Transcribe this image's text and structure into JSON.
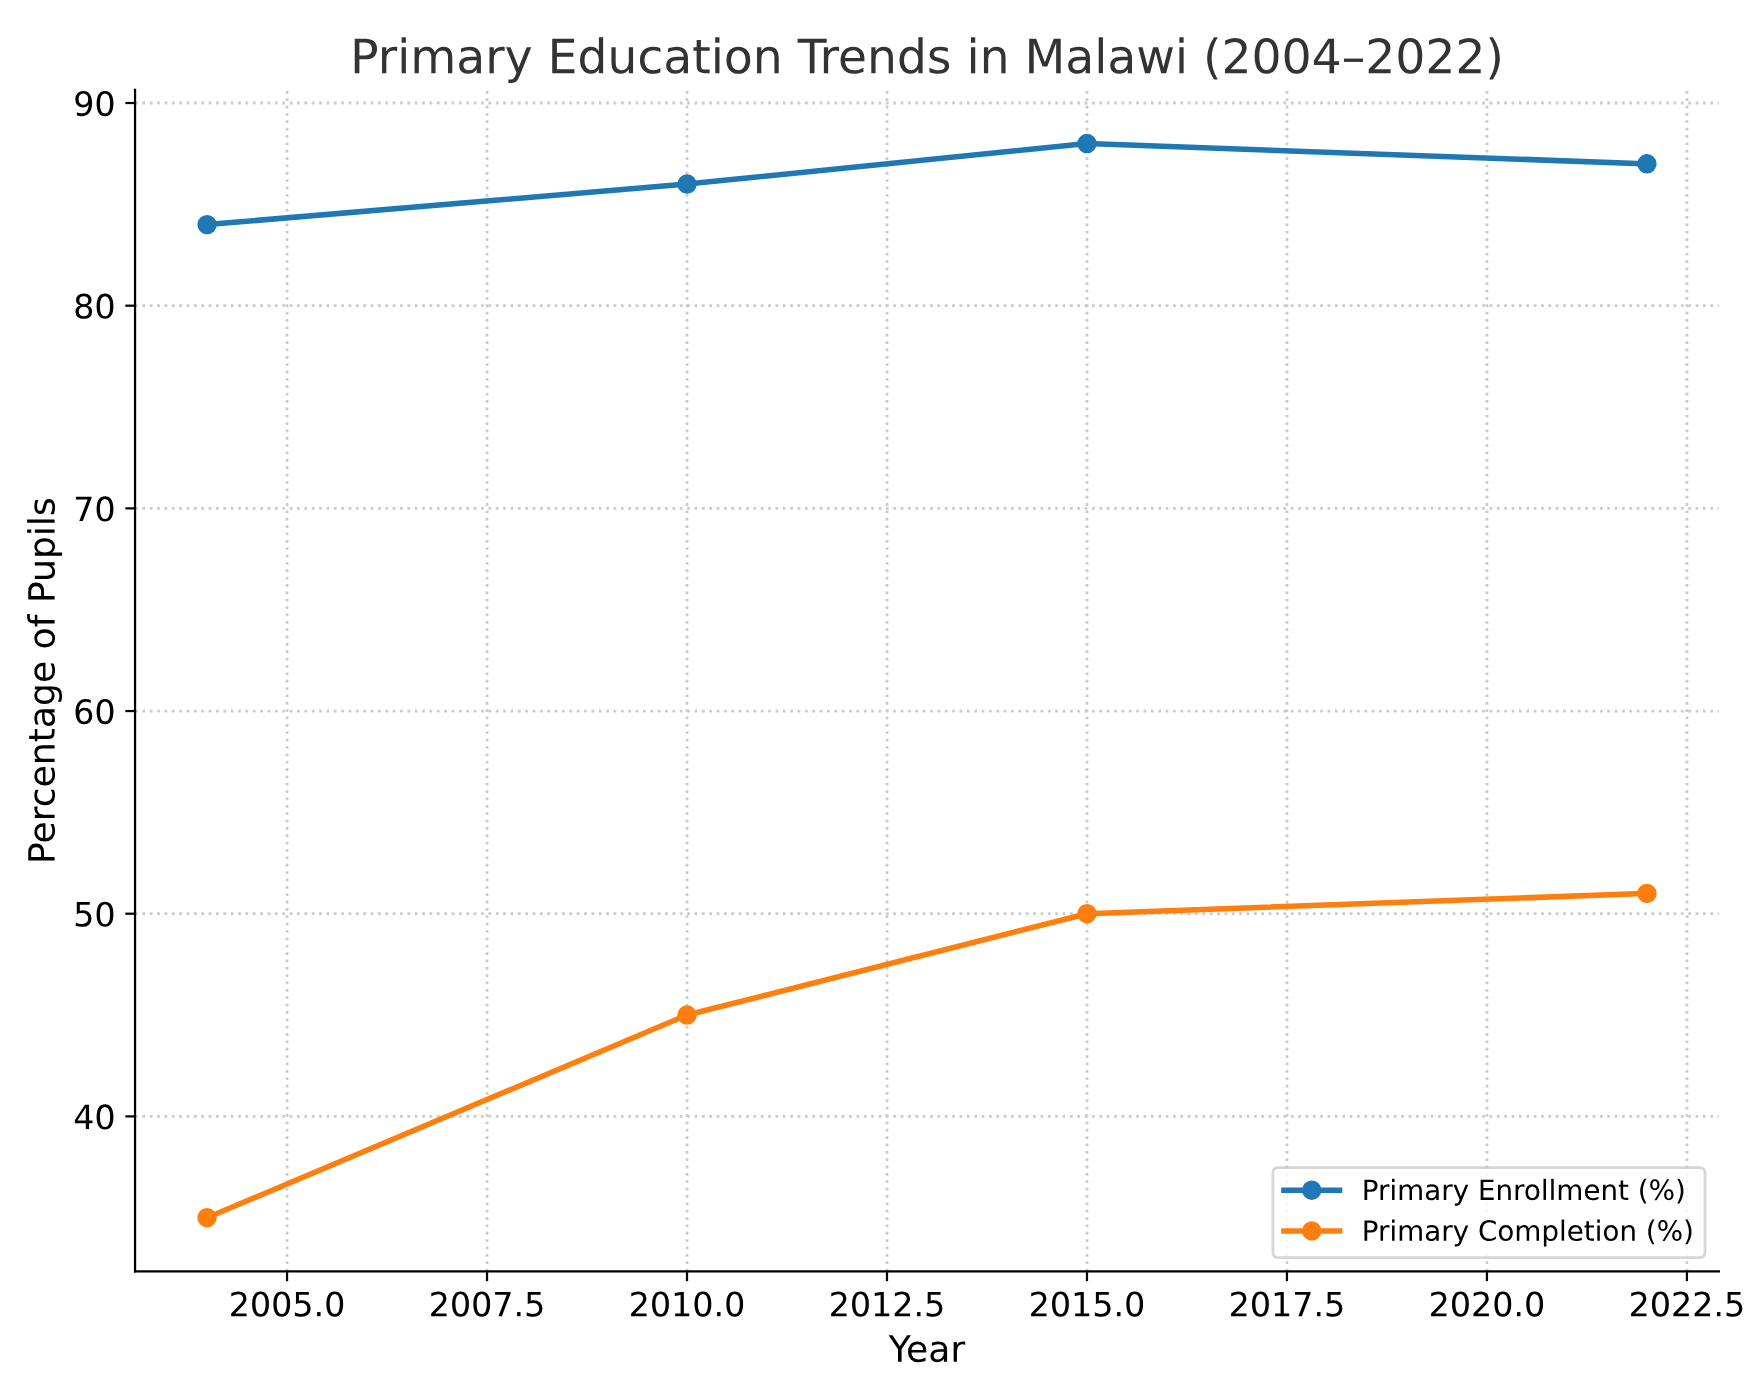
{
  "chart_data": {
    "type": "line",
    "title": "Primary Education Trends in Malawi (2004–2022)",
    "xlabel": "Year",
    "ylabel": "Percentage of Pupils",
    "x": [
      2004,
      2010,
      2015,
      2022
    ],
    "series": [
      {
        "name": "Primary Enrollment (%)",
        "color": "#1f77b4",
        "values": [
          84,
          86,
          88,
          87
        ]
      },
      {
        "name": "Primary Completion (%)",
        "color": "#ff7f0e",
        "values": [
          35,
          45,
          50,
          51
        ]
      }
    ],
    "xlim": [
      2003.1,
      2022.9
    ],
    "ylim": [
      32.35,
      90.65
    ],
    "xticks": [
      {
        "value": 2005,
        "label": "2005.0"
      },
      {
        "value": 2007.5,
        "label": "2007.5"
      },
      {
        "value": 2010,
        "label": "2010.0"
      },
      {
        "value": 2012.5,
        "label": "2012.5"
      },
      {
        "value": 2015,
        "label": "2015.0"
      },
      {
        "value": 2017.5,
        "label": "2017.5"
      },
      {
        "value": 2020,
        "label": "2020.0"
      },
      {
        "value": 2022.5,
        "label": "2022.5"
      }
    ],
    "yticks": [
      40,
      50,
      60,
      70,
      80,
      90
    ],
    "grid": true,
    "legend": "lower right",
    "marker": "circle",
    "line_style": "solid"
  }
}
